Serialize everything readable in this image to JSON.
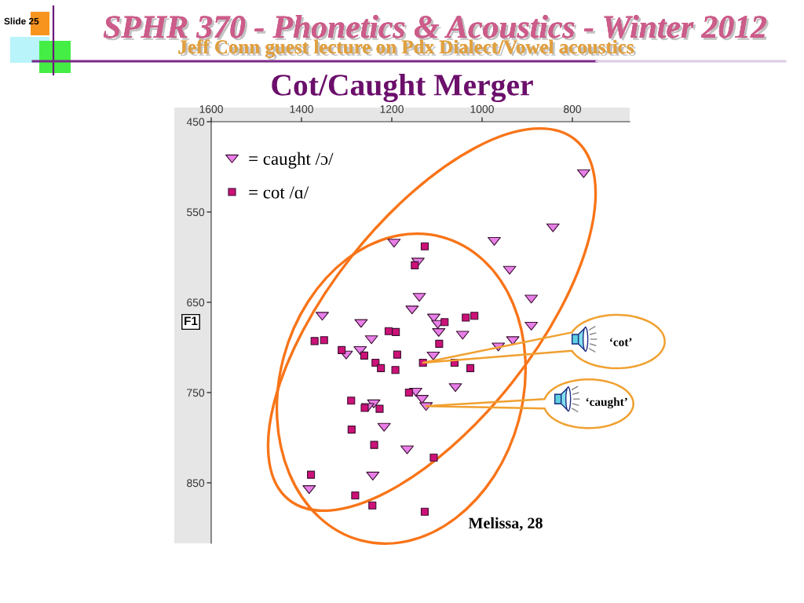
{
  "chart_data": {
    "type": "scatter",
    "title": "Cot/Caught Merger",
    "ylabel": "F1",
    "annotations": [
      "SPHR 370 - Phonetics & Acoustics - Winter 2012",
      "Jeff Conn guest lecture on Pdx Dialect/Vowel acoustics",
      "Slide 25",
      "Melissa, 28",
      "‘cot’",
      "‘caught’"
    ],
    "xlim": [
      1600,
      673
    ],
    "ylim": [
      917,
      450
    ],
    "xticks": [
      1600,
      1400,
      1200,
      1000,
      800
    ],
    "yticks": [
      450,
      550,
      650,
      750,
      850
    ],
    "legend": "top left",
    "series": [
      {
        "name": "= caught /ɔ/",
        "color": "#e87fe8",
        "marker": "triangle",
        "x": [
          775,
          843,
          973,
          1195,
          1142,
          939,
          1139,
          891,
          1155,
          1354,
          1107,
          1268,
          1098,
          891,
          1096,
          1043,
          1245,
          932,
          964,
          1270,
          1301,
          1108,
          1059,
          1147,
          1133,
          1240,
          1124,
          1253,
          1217,
          1166,
          1242,
          1383
        ],
        "values": [
          507,
          567,
          582,
          584,
          605,
          614,
          644,
          646,
          658,
          665,
          667,
          673,
          674,
          676,
          683,
          686,
          691,
          692,
          699,
          703,
          708,
          709,
          744,
          749,
          757,
          762,
          765,
          766,
          788,
          813,
          842,
          857
        ]
      },
      {
        "name": "= cot /ɑ/",
        "color": "#cc1177",
        "marker": "square",
        "x": [
          1127,
          1149,
          1083,
          1036,
          1017,
          1207,
          1191,
          1371,
          1350,
          1095,
          1311,
          1188,
          1261,
          1131,
          1061,
          1236,
          1026,
          1224,
          1192,
          1162,
          1290,
          1260,
          1227,
          1289,
          1239,
          1107,
          1379,
          1281,
          1243,
          1127
        ],
        "values": [
          588,
          609,
          672,
          667,
          665,
          682,
          683,
          693,
          692,
          696,
          703,
          708,
          709,
          717,
          717,
          717,
          723,
          723,
          725,
          750,
          759,
          767,
          768,
          791,
          808,
          822,
          841,
          864,
          875,
          882
        ]
      }
    ]
  }
}
